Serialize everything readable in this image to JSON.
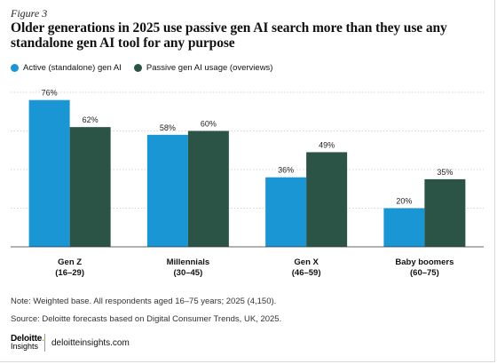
{
  "figure_label": "Figure 3",
  "title": "Older generations in 2025 use passive gen AI search more than they use any standalone gen AI tool for any purpose",
  "legend": [
    {
      "label": "Active (standalone) gen AI",
      "color": "#1a96d4"
    },
    {
      "label": "Passive gen AI usage (overviews)",
      "color": "#2b5446"
    }
  ],
  "chart_data": {
    "type": "bar",
    "categories": [
      "Gen Z",
      "Millennials",
      "Gen X",
      "Baby boomers"
    ],
    "category_sublabels": [
      "(16–29)",
      "(30–45)",
      "(46–59)",
      "(60–75)"
    ],
    "series": [
      {
        "name": "Active (standalone) gen AI",
        "values": [
          76,
          58,
          36,
          20
        ],
        "labels": [
          "76%",
          "58%",
          "36%",
          "20%"
        ],
        "color": "#1a96d4"
      },
      {
        "name": "Passive gen AI usage (overviews)",
        "values": [
          62,
          60,
          49,
          35
        ],
        "labels": [
          "62%",
          "60%",
          "49%",
          "35%"
        ],
        "color": "#2b5446"
      }
    ],
    "ylim": [
      0,
      80
    ],
    "grid": true,
    "legend_position": "top-left"
  },
  "notes": {
    "note": "Note: Weighted base. All respondents aged 16–75 years; 2025 (4,150).",
    "source": "Source: Deloitte forecasts based on Digital Consumer Trends, UK, 2025."
  },
  "branding": {
    "logo_line1": "Deloitte",
    "logo_dot": ".",
    "logo_line2": "Insights",
    "site": "deloitteinsights.com"
  }
}
